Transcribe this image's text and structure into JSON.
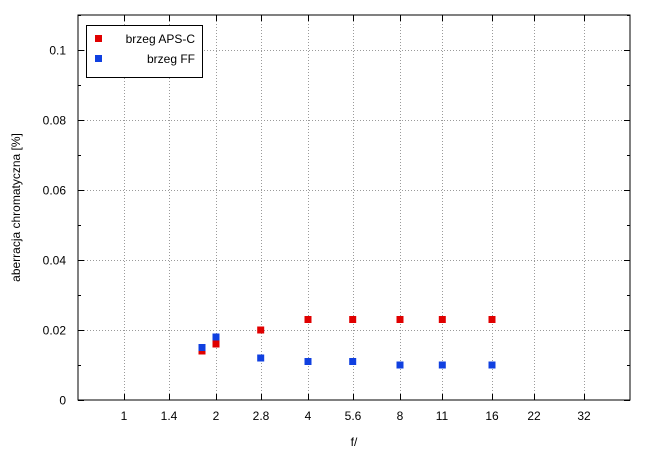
{
  "chart_data": {
    "type": "scatter",
    "title": "",
    "xlabel": "f/",
    "ylabel": "aberracja chromatyczna [%]",
    "x_scale": "log2",
    "x_ticks": [
      "1",
      "1.4",
      "2",
      "2.8",
      "4",
      "5.6",
      "8",
      "11",
      "16",
      "22",
      "32"
    ],
    "xlim": [
      0.7071,
      45.25
    ],
    "ylim": [
      0,
      0.11
    ],
    "y_ticks": [
      "0",
      "0.02",
      "0.04",
      "0.06",
      "0.08",
      "0.1"
    ],
    "y_minor_step": 0.01,
    "grid": true,
    "legend_position": "top-left",
    "series": [
      {
        "name": "brzeg APS-C",
        "color": "#e00000",
        "marker": "square",
        "points": [
          {
            "x": 1.8,
            "y": 0.014
          },
          {
            "x": 2,
            "y": 0.016
          },
          {
            "x": 2.8,
            "y": 0.02
          },
          {
            "x": 4,
            "y": 0.023
          },
          {
            "x": 5.6,
            "y": 0.023
          },
          {
            "x": 8,
            "y": 0.023
          },
          {
            "x": 11,
            "y": 0.023
          },
          {
            "x": 16,
            "y": 0.023
          }
        ]
      },
      {
        "name": "brzeg FF",
        "color": "#1040e0",
        "marker": "square",
        "points": [
          {
            "x": 1.8,
            "y": 0.015
          },
          {
            "x": 2,
            "y": 0.018
          },
          {
            "x": 2.8,
            "y": 0.012
          },
          {
            "x": 4,
            "y": 0.011
          },
          {
            "x": 5.6,
            "y": 0.011
          },
          {
            "x": 8,
            "y": 0.01
          },
          {
            "x": 11,
            "y": 0.01
          },
          {
            "x": 16,
            "y": 0.01
          }
        ]
      }
    ]
  }
}
